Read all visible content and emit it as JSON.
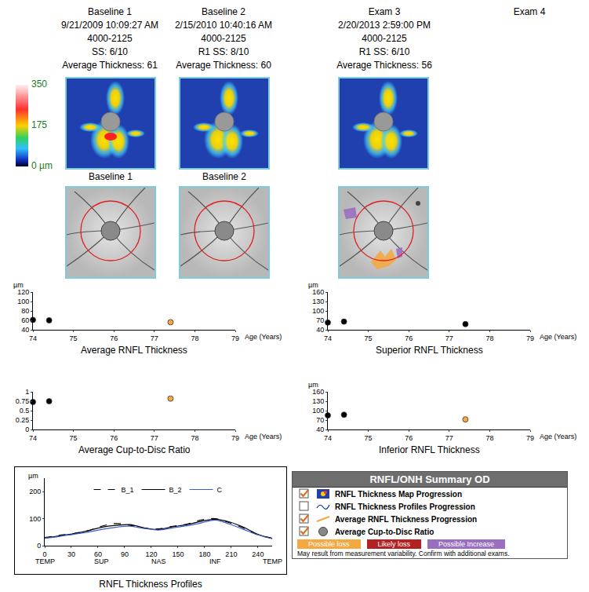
{
  "exams": [
    {
      "title": "Baseline 1",
      "date": "9/21/2009 10:09:27 AM",
      "id": "4000-2125",
      "quality": "SS: 6/10",
      "average": "Average Thickness: 61"
    },
    {
      "title": "Baseline 2",
      "date": "2/15/2010 10:40:16 AM",
      "id": "4000-2125",
      "quality": "R1  SS: 8/10",
      "average": "Average Thickness: 60"
    },
    {
      "title": "Exam 3",
      "date": "2/20/2013 2:59:00 PM",
      "id": "4000-2125",
      "quality": "R1  SS: 6/10",
      "average": "Average Thickness: 56"
    },
    {
      "title": "Exam 4"
    }
  ],
  "colorbar": {
    "range": [
      0,
      350
    ],
    "ticks": [
      350,
      175,
      {
        "value": 0,
        "label": "0 µm"
      }
    ]
  },
  "image_labels": [
    "Baseline 1",
    "Baseline 2"
  ],
  "chart_data": [
    {
      "type": "scatter",
      "title": "Average RNFL Thickness",
      "ylabel": "µm",
      "xlabel": "Age (Years)",
      "x": [
        74.0,
        74.4,
        77.4
      ],
      "values": [
        61,
        60,
        56
      ],
      "colors": [
        "#000000",
        "#000000",
        "#f5a742"
      ],
      "xlim": [
        74,
        79
      ],
      "xticks": [
        74,
        75,
        76,
        77,
        78,
        79
      ],
      "ylim": [
        40,
        120
      ],
      "yticks": [
        40,
        60,
        80,
        100,
        120
      ],
      "grid": false
    },
    {
      "type": "scatter",
      "title": "Superior RNFL Thickness",
      "ylabel": "µm",
      "xlabel": "Age (Years)",
      "x": [
        74.0,
        74.4,
        77.4
      ],
      "values": [
        63,
        66,
        58
      ],
      "colors": [
        "#000000",
        "#000000",
        "#000000"
      ],
      "xlim": [
        74,
        79
      ],
      "xticks": [
        74,
        75,
        76,
        77,
        78,
        79
      ],
      "ylim": [
        40,
        160
      ],
      "yticks": [
        40,
        70,
        100,
        130,
        160
      ],
      "grid": false
    },
    {
      "type": "scatter",
      "title": "Average Cup-to-Disc Ratio",
      "xlabel": "Age (Years)",
      "x": [
        74.0,
        74.4,
        77.4
      ],
      "values": [
        0.73,
        0.75,
        0.82
      ],
      "colors": [
        "#000000",
        "#000000",
        "#f5a742"
      ],
      "xlim": [
        74,
        79
      ],
      "xticks": [
        74,
        75,
        76,
        77,
        78,
        79
      ],
      "ylim": [
        0,
        1
      ],
      "yticks": [
        0,
        0.25,
        0.5,
        0.75,
        1
      ],
      "grid": false
    },
    {
      "type": "scatter",
      "title": "Inferior RNFL Thickness",
      "ylabel": "µm",
      "xlabel": "Age (Years)",
      "x": [
        74.0,
        74.4,
        77.4
      ],
      "values": [
        85,
        87,
        72
      ],
      "colors": [
        "#000000",
        "#000000",
        "#f5a742"
      ],
      "xlim": [
        74,
        79
      ],
      "xticks": [
        74,
        75,
        76,
        77,
        78,
        79
      ],
      "ylim": [
        40,
        160
      ],
      "yticks": [
        40,
        70,
        100,
        130,
        160
      ],
      "grid": false
    },
    {
      "type": "line",
      "title": "RNFL Thickness Profiles",
      "ylabel": "µm",
      "x": [
        0,
        16,
        32,
        48,
        64,
        80,
        96,
        112,
        128,
        144,
        160,
        176,
        192,
        208,
        224,
        240,
        256
      ],
      "series": [
        {
          "name": "B_1",
          "color": "#000000",
          "line_style": "dashed",
          "values": [
            30,
            38,
            45,
            55,
            72,
            82,
            75,
            65,
            62,
            72,
            80,
            95,
            100,
            85,
            65,
            40,
            28
          ]
        },
        {
          "name": "B_2",
          "color": "#000000",
          "line_style": "solid",
          "values": [
            28,
            36,
            44,
            55,
            68,
            75,
            78,
            66,
            60,
            70,
            78,
            90,
            98,
            88,
            68,
            42,
            27
          ]
        },
        {
          "name": "C",
          "color": "#3a5fcd",
          "line_style": "solid",
          "values": [
            28,
            34,
            42,
            50,
            60,
            68,
            72,
            64,
            58,
            66,
            74,
            84,
            95,
            80,
            60,
            40,
            26
          ]
        }
      ],
      "xlim": [
        0,
        256
      ],
      "xticks": [
        0,
        30,
        60,
        90,
        120,
        150,
        180,
        210,
        240
      ],
      "ylim": [
        0,
        250
      ],
      "yticks": [
        0,
        100,
        200
      ],
      "legend": "top",
      "grid": false,
      "annotations": [
        {
          "x": 0,
          "text": "TEMP"
        },
        {
          "x": 64,
          "text": "SUP"
        },
        {
          "x": 128,
          "text": "NAS"
        },
        {
          "x": 192,
          "text": "INF"
        },
        {
          "x": 256,
          "text": "TEMP"
        }
      ]
    }
  ],
  "summary": {
    "title": "RNFL/ONH Summary OD",
    "items": [
      {
        "label": "RNFL Thickness Map Progression",
        "checked": true
      },
      {
        "label": "RNFL Thickness Profiles Progression",
        "checked": false
      },
      {
        "label": "Average RNFL Thickness Progression",
        "checked": true
      },
      {
        "label": "Average Cup-to-Disc Ratio",
        "checked": true
      }
    ],
    "legend": [
      {
        "label": "Possible loss",
        "color": "#f5a742"
      },
      {
        "label": "Likely loss",
        "color": "#b22222"
      },
      {
        "label": "Possible Increase",
        "color": "#9b6fc0"
      }
    ],
    "note": "May result from measurement variability. Confirm with additional exams."
  }
}
